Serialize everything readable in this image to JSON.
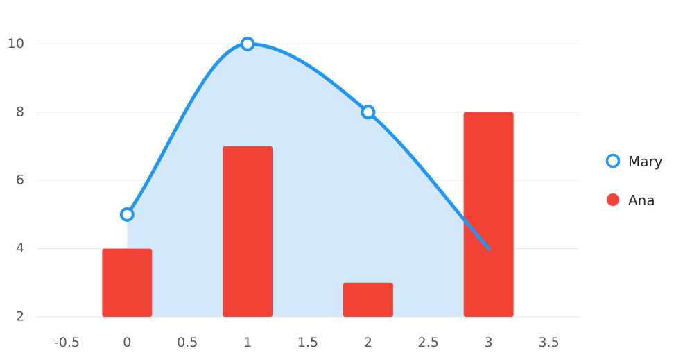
{
  "chart_data": {
    "type": "bar",
    "x_ticks": [
      "-0.5",
      "0",
      "0.5",
      "1",
      "1.5",
      "2",
      "2.5",
      "3",
      "3.5"
    ],
    "y_ticks": [
      "2",
      "4",
      "6",
      "8",
      "10"
    ],
    "xlim": [
      -0.75,
      3.75
    ],
    "ylim": [
      2,
      10.8
    ],
    "grid": true,
    "legend_position": "right",
    "series": [
      {
        "name": "Mary",
        "type": "area-spline",
        "color": "#2196f3",
        "fill": "#d3e9fb",
        "x": [
          0,
          1,
          2,
          3
        ],
        "values": [
          5,
          10,
          8,
          4
        ]
      },
      {
        "name": "Ana",
        "type": "bar",
        "color": "#f44336",
        "x": [
          0,
          1,
          2,
          3
        ],
        "values": [
          4,
          7,
          3,
          8
        ]
      }
    ]
  }
}
